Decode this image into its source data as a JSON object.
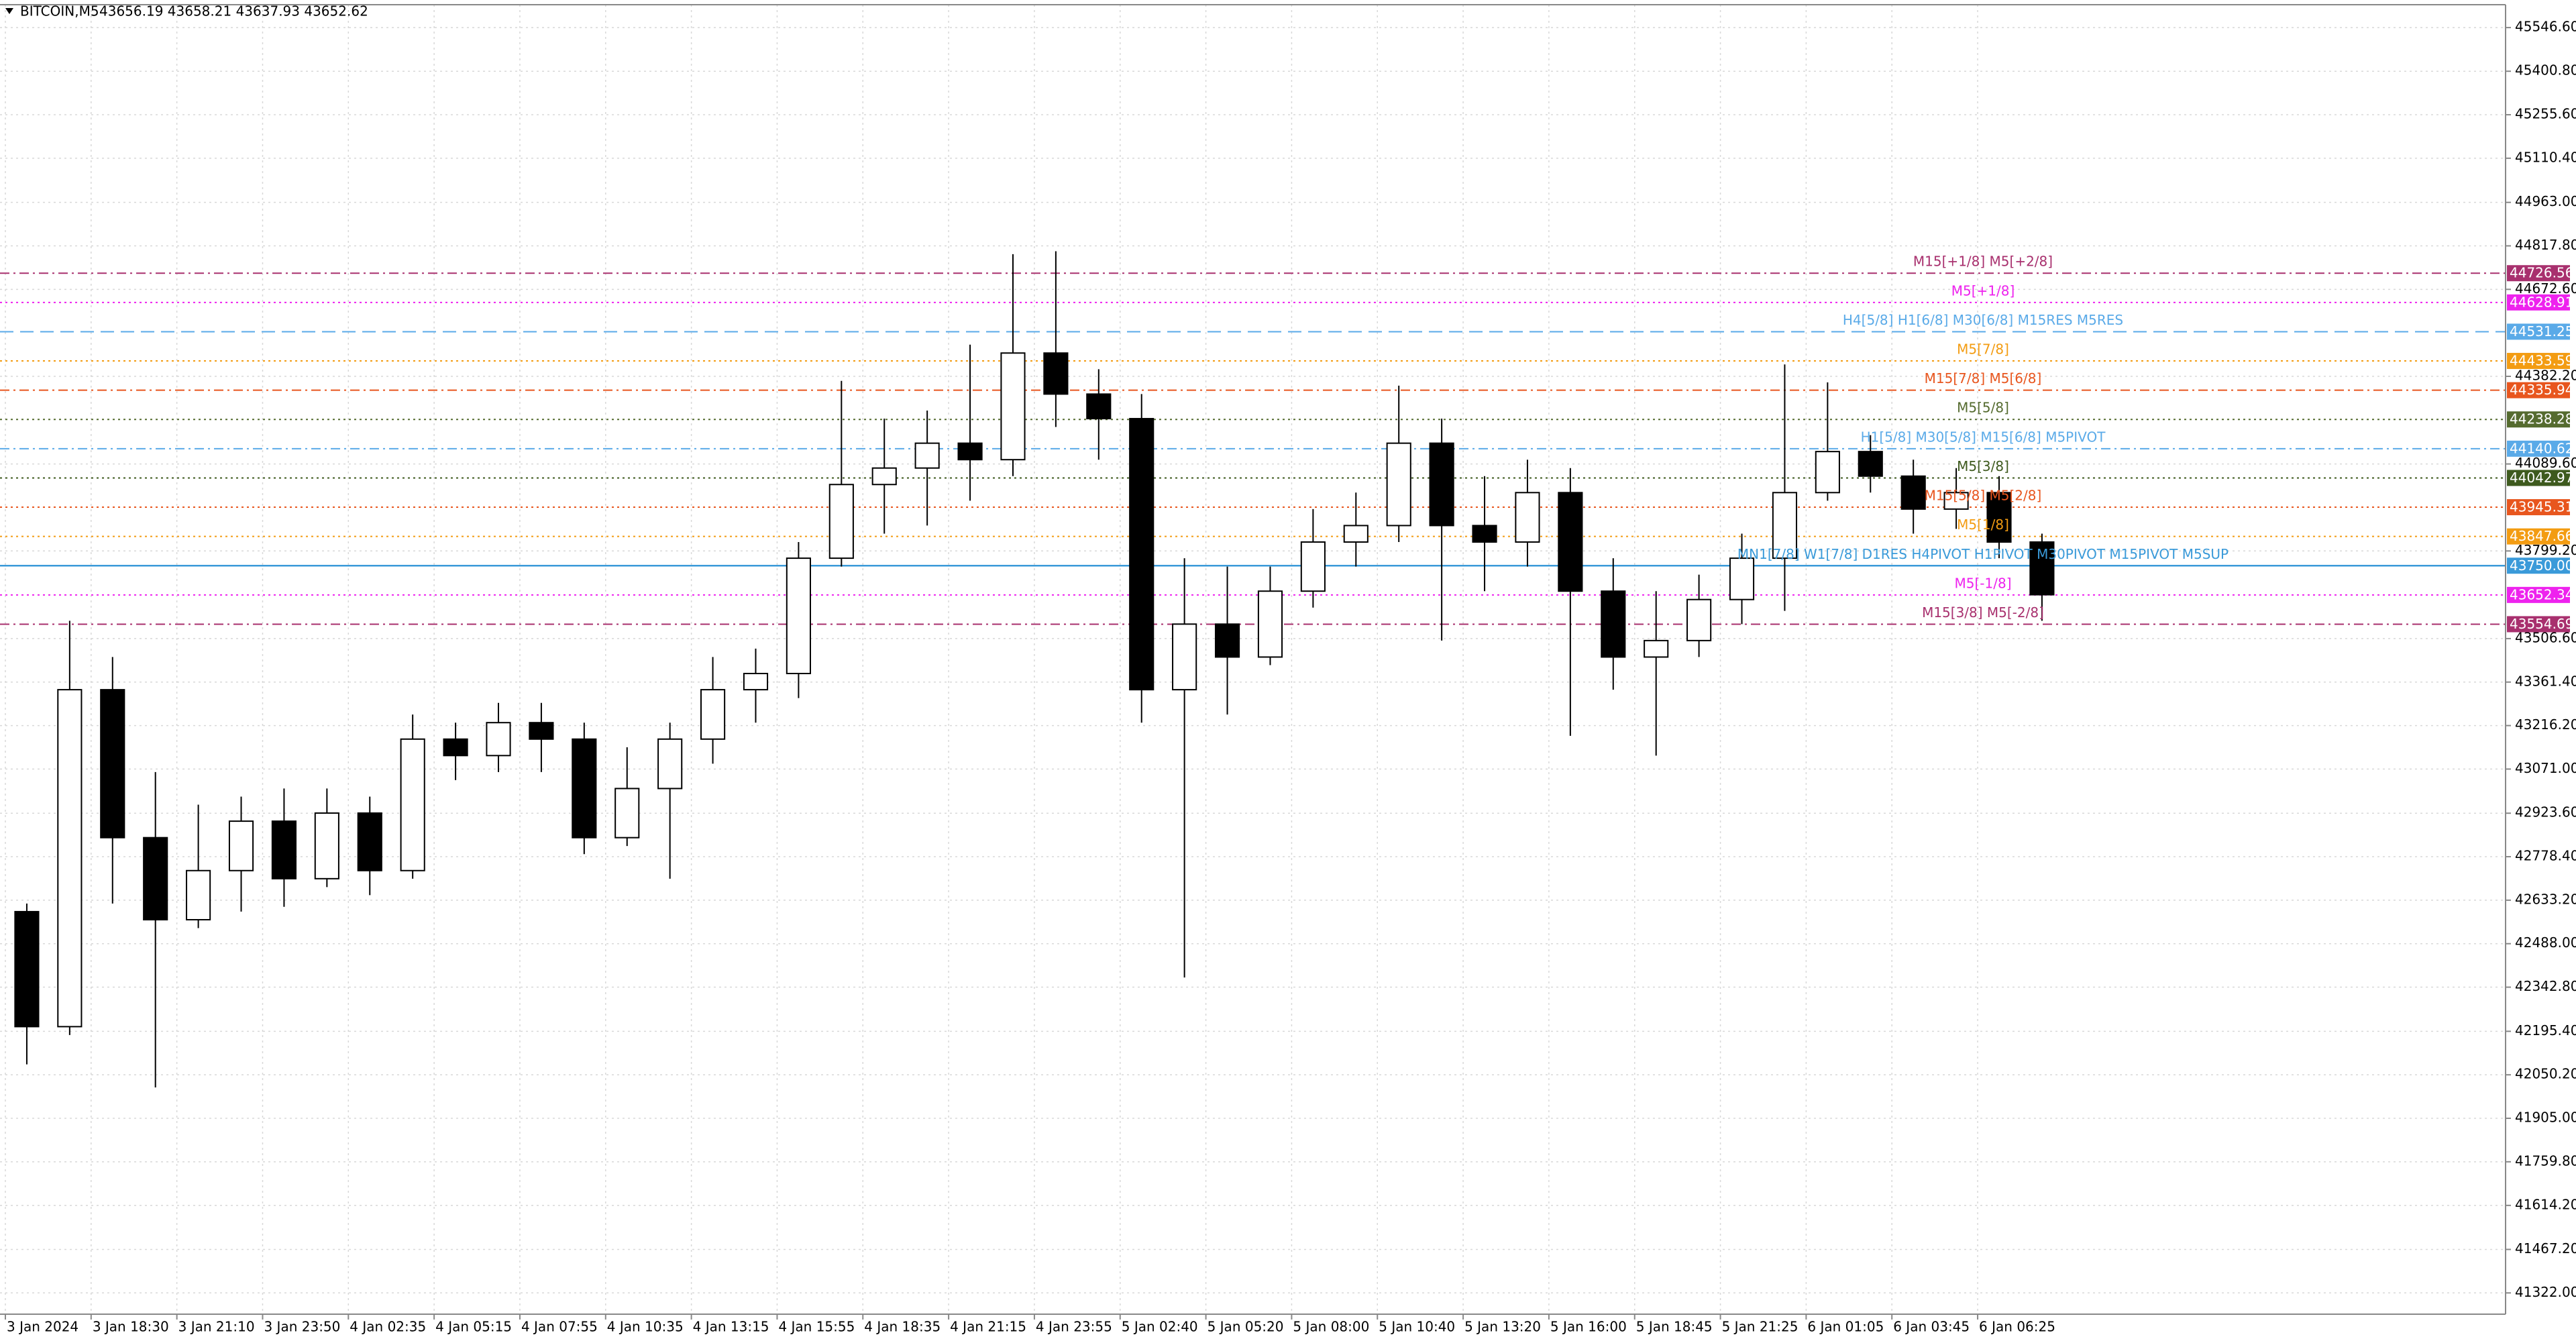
{
  "chart_data": {
    "type": "candlestick",
    "title": "BITCOIN,M5",
    "subtitle": "43656.19 43658.21 43637.93 43652.62",
    "color": "#000000",
    "up_color": "#ffffff",
    "grid": true,
    "x": [
      8,
      24,
      40,
      56,
      72,
      88,
      104,
      120,
      136,
      152,
      168,
      184,
      200,
      216,
      232,
      248,
      264,
      280,
      296,
      312,
      328,
      344,
      360,
      376,
      392,
      408,
      424,
      440,
      456,
      472,
      488,
      504,
      520,
      536,
      552,
      568,
      584,
      600,
      616,
      632,
      648,
      664,
      680,
      696,
      712,
      728,
      744,
      760
    ],
    "open": [
      42595,
      42211,
      43336,
      42842,
      42568,
      42732,
      42897,
      42705,
      42924,
      42732,
      43171,
      43116,
      43226,
      43171,
      42842,
      43006,
      43171,
      43336,
      43390,
      43775,
      44021,
      44076,
      44159,
      44104,
      44460,
      44323,
      44241,
      43336,
      43555,
      43445,
      43665,
      43829,
      43884,
      44159,
      43884,
      43829,
      43994,
      43665,
      43445,
      43500,
      43637,
      43775,
      43994,
      44131,
      44049,
      43939,
      43994,
      43829
    ],
    "high": [
      42622,
      43566,
      43445,
      43061,
      42952,
      42979,
      43006,
      43006,
      42979,
      43253,
      43226,
      43292,
      43292,
      43226,
      43144,
      43226,
      43445,
      43473,
      43829,
      44367,
      44241,
      44268,
      44488,
      44790,
      44800,
      44406,
      44323,
      43775,
      43747,
      43747,
      43939,
      43994,
      44351,
      44241,
      44049,
      44104,
      44076,
      43775,
      43665,
      43720,
      43857,
      44422,
      44362,
      44186,
      44104,
      44076,
      44049,
      43857
    ],
    "low": [
      42085,
      42183,
      42622,
      42008,
      42540,
      42595,
      42611,
      42677,
      42650,
      42705,
      43034,
      43061,
      43061,
      42787,
      42814,
      42705,
      43089,
      43226,
      43308,
      43747,
      43857,
      43884,
      43967,
      44049,
      44213,
      44104,
      43226,
      42375,
      43253,
      43418,
      43610,
      43747,
      43829,
      43500,
      43665,
      43747,
      43182,
      43336,
      43116,
      43445,
      43555,
      43599,
      43967,
      43994,
      43857,
      43873,
      43775,
      43566
    ],
    "close": [
      42211,
      43336,
      42842,
      42568,
      42732,
      42897,
      42705,
      42924,
      42732,
      43171,
      43116,
      43226,
      43171,
      42842,
      43006,
      43171,
      43336,
      43390,
      43775,
      44021,
      44076,
      44159,
      44104,
      44460,
      44323,
      44241,
      43336,
      43555,
      43445,
      43665,
      43829,
      43884,
      44159,
      43884,
      43829,
      43994,
      43665,
      43445,
      43500,
      43637,
      43775,
      43994,
      44131,
      44049,
      43939,
      43994,
      43829,
      43653
    ],
    "xlim": [
      -2,
      933
    ],
    "xticks": [
      {
        "value": 0,
        "label": "3 Jan 2024"
      },
      {
        "value": 32,
        "label": "3 Jan 18:30"
      },
      {
        "value": 64,
        "label": "3 Jan 21:10"
      },
      {
        "value": 96,
        "label": "3 Jan 23:50"
      },
      {
        "value": 128,
        "label": "4 Jan 02:35"
      },
      {
        "value": 160,
        "label": "4 Jan 05:15"
      },
      {
        "value": 192,
        "label": "4 Jan 07:55"
      },
      {
        "value": 224,
        "label": "4 Jan 10:35"
      },
      {
        "value": 256,
        "label": "4 Jan 13:15"
      },
      {
        "value": 288,
        "label": "4 Jan 15:55"
      },
      {
        "value": 320,
        "label": "4 Jan 18:35"
      },
      {
        "value": 352,
        "label": "4 Jan 21:15"
      },
      {
        "value": 384,
        "label": "4 Jan 23:55"
      },
      {
        "value": 416,
        "label": "5 Jan 02:40"
      },
      {
        "value": 448,
        "label": "5 Jan 05:20"
      },
      {
        "value": 480,
        "label": "5 Jan 08:00"
      },
      {
        "value": 512,
        "label": "5 Jan 10:40"
      },
      {
        "value": 544,
        "label": "5 Jan 13:20"
      },
      {
        "value": 576,
        "label": "5 Jan 16:00"
      },
      {
        "value": 608,
        "label": "5 Jan 18:45"
      },
      {
        "value": 640,
        "label": "5 Jan 21:25"
      },
      {
        "value": 672,
        "label": "6 Jan 01:05"
      },
      {
        "value": 704,
        "label": "6 Jan 03:45"
      },
      {
        "value": 736,
        "label": "6 Jan 06:25"
      }
    ],
    "ylim": [
      41251,
      45623
    ],
    "yticks": [
      {
        "value": 45546.6,
        "label": "45546.60"
      },
      {
        "value": 45400.8,
        "label": "45400.80"
      },
      {
        "value": 45255.6,
        "label": "45255.60"
      },
      {
        "value": 45110.4,
        "label": "45110.40"
      },
      {
        "value": 44963,
        "label": "44963.00"
      },
      {
        "value": 44817.8,
        "label": "44817.80"
      },
      {
        "value": 44672.6,
        "label": "44672.60"
      },
      {
        "value": 44382.2,
        "label": "44382.20"
      },
      {
        "value": 44089.6,
        "label": "44089.60"
      },
      {
        "value": 43799.2,
        "label": "43799.20"
      },
      {
        "value": 43506.6,
        "label": "43506.60"
      },
      {
        "value": 43361.4,
        "label": "43361.40"
      },
      {
        "value": 43216.2,
        "label": "43216.20"
      },
      {
        "value": 43071,
        "label": "43071.00"
      },
      {
        "value": 42923.6,
        "label": "42923.60"
      },
      {
        "value": 42778.4,
        "label": "42778.40"
      },
      {
        "value": 42633.2,
        "label": "42633.20"
      },
      {
        "value": 42488,
        "label": "42488.00"
      },
      {
        "value": 42342.8,
        "label": "42342.80"
      },
      {
        "value": 42195.4,
        "label": "42195.40"
      },
      {
        "value": 42050.2,
        "label": "42050.20"
      },
      {
        "value": 41905,
        "label": "41905.00"
      },
      {
        "value": 41759.8,
        "label": "41759.80"
      },
      {
        "value": 41614.2,
        "label": "41614.20"
      },
      {
        "value": 41467.2,
        "label": "41467.20"
      },
      {
        "value": 41322,
        "label": "41322.00"
      }
    ],
    "levels": [
      {
        "value": 44726.56,
        "value_label": "44726.56",
        "label": "M15[+1/8] M5[+2/8]",
        "color": "#a8306e",
        "style": "dashdot"
      },
      {
        "value": 44628.91,
        "value_label": "44628.91",
        "label": "M5[+1/8]",
        "color": "#ee22ee",
        "style": "dotted"
      },
      {
        "value": 44531.25,
        "value_label": "44531.25",
        "label": "H4[5/8] H1[6/8] M30[6/8] M15RES M5RES",
        "color": "#5aaae8",
        "style": "dashed"
      },
      {
        "value": 44433.59,
        "value_label": "44433.59",
        "label": "M5[7/8]",
        "color": "#f39c12",
        "style": "dotted"
      },
      {
        "value": 44335.94,
        "value_label": "44335.94",
        "label": "M15[7/8] M5[6/8]",
        "color": "#e8561e",
        "style": "dashdot"
      },
      {
        "value": 44238.28,
        "value_label": "44238.28",
        "label": "M5[5/8]",
        "color": "#556b2f",
        "style": "dotted"
      },
      {
        "value": 44140.62,
        "value_label": "44140.62",
        "label": "H1[5/8] M30[5/8] M15[6/8] M5PIVOT",
        "color": "#5aaae8",
        "style": "dashdot"
      },
      {
        "value": 44042.97,
        "value_label": "44042.97",
        "label": "M5[3/8]",
        "color": "#3e5a1e",
        "style": "dotted"
      },
      {
        "value": 43945.31,
        "value_label": "43945.31",
        "label": "M15[5/8] M5[2/8]",
        "color": "#e8561e",
        "style": "dotted"
      },
      {
        "value": 43847.66,
        "value_label": "43847.66",
        "label": "M5[1/8]",
        "color": "#f39c12",
        "style": "dotted"
      },
      {
        "value": 43750,
        "value_label": "43750.00",
        "label": "MN1[7/8] W1[7/8] D1RES H4PIVOT H1PIVOT M30PIVOT M15PIVOT M5SUP",
        "color": "#3a9ad9",
        "style": "solid"
      },
      {
        "value": 43652.34,
        "value_label": "43652.34",
        "label": "M5[-1/8]",
        "color": "#ee22ee",
        "style": "dotted"
      },
      {
        "value": 43554.69,
        "value_label": "43554.69",
        "label": "M15[3/8] M5[-2/8]",
        "color": "#a8306e",
        "style": "dashdot"
      }
    ]
  }
}
